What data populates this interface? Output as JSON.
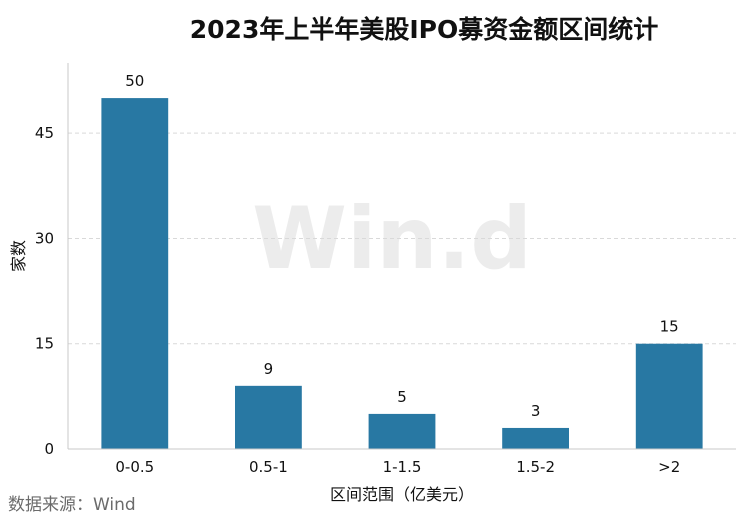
{
  "title": "2023年上半年美股IPO募资金额区间统计",
  "source": "数据来源：Wind",
  "watermark": "Win.d",
  "chart_data": {
    "type": "bar",
    "title": "2023年上半年美股IPO募资金额区间统计",
    "xlabel": "区间范围（亿美元）",
    "ylabel": "家数",
    "categories": [
      "0-0.5",
      "0.5-1",
      "1-1.5",
      "1.5-2",
      ">2"
    ],
    "values": [
      50,
      9,
      5,
      3,
      15
    ],
    "data_labels": [
      "50",
      "9",
      "5",
      "3",
      "15"
    ],
    "ylim": [
      0,
      55
    ],
    "yticks": [
      0,
      15,
      30,
      45
    ],
    "ytick_labels": [
      "0",
      "15",
      "30",
      "45"
    ],
    "grid": true,
    "bar_color": "#2878a3"
  }
}
